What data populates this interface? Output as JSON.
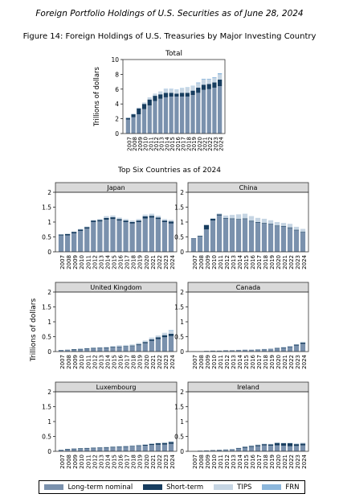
{
  "doc_title": "Foreign Portfolio Holdings of U.S. Securities as of June 28, 2024",
  "figure_title": "Figure 14: Foreign Holdings of U.S. Treasuries by Major Investing Country",
  "section_title": "Top Six Countries as of 2024",
  "shared_ylabel": "Trillions of dollars",
  "colors": {
    "lt": "#7a91ad",
    "st": "#173d5f",
    "tips": "#c6d5e3",
    "frn": "#8cb7dc",
    "panel_header": "#d9d9d9"
  },
  "legend": [
    {
      "key": "lt",
      "label": "Long-term nominal"
    },
    {
      "key": "st",
      "label": "Short-term"
    },
    {
      "key": "tips",
      "label": "TIPS"
    },
    {
      "key": "frn",
      "label": "FRN"
    }
  ],
  "chart_data": [
    {
      "type": "bar",
      "stacked": true,
      "title": "Total",
      "ylabel": "Trillions of dollars",
      "ylim": [
        0,
        10
      ],
      "yticks": [
        0,
        2,
        4,
        6,
        8,
        10
      ],
      "categories": [
        "2007",
        "2008",
        "2009",
        "2010",
        "2011",
        "2012",
        "2013",
        "2014",
        "2015",
        "2016",
        "2017",
        "2018",
        "2019",
        "2020",
        "2021",
        "2022",
        "2023",
        "2024"
      ],
      "series": [
        {
          "name": "Long-term nominal",
          "key": "lt",
          "values": [
            1.9,
            2.2,
            2.6,
            3.3,
            3.8,
            4.4,
            4.7,
            4.9,
            5.0,
            5.0,
            5.0,
            5.0,
            5.2,
            5.5,
            5.9,
            6.0,
            6.2,
            6.4
          ]
        },
        {
          "name": "Short-term",
          "key": "st",
          "values": [
            0.2,
            0.4,
            0.8,
            0.7,
            0.8,
            0.7,
            0.6,
            0.6,
            0.5,
            0.4,
            0.5,
            0.5,
            0.6,
            0.7,
            0.7,
            0.7,
            0.7,
            0.9
          ]
        },
        {
          "name": "TIPS",
          "key": "tips",
          "values": [
            0.1,
            0.1,
            0.1,
            0.2,
            0.3,
            0.3,
            0.4,
            0.5,
            0.5,
            0.5,
            0.6,
            0.7,
            0.6,
            0.6,
            0.7,
            0.6,
            0.6,
            0.7
          ]
        },
        {
          "name": "FRN",
          "key": "frn",
          "values": [
            0,
            0,
            0,
            0,
            0,
            0,
            0,
            0.05,
            0.05,
            0.05,
            0.05,
            0.05,
            0.05,
            0.1,
            0.1,
            0.1,
            0.1,
            0.15
          ]
        }
      ]
    },
    {
      "type": "bar",
      "stacked": true,
      "title": "Japan",
      "ylim": [
        0,
        2
      ],
      "yticks": [
        0,
        0.5,
        1,
        1.5,
        2
      ],
      "categories": [
        "2007",
        "2008",
        "2009",
        "2010",
        "2011",
        "2012",
        "2013",
        "2014",
        "2015",
        "2016",
        "2017",
        "2018",
        "2019",
        "2020",
        "2021",
        "2022",
        "2023",
        "2024"
      ],
      "series": [
        {
          "name": "Long-term nominal",
          "key": "lt",
          "values": [
            0.55,
            0.55,
            0.62,
            0.7,
            0.78,
            1.0,
            1.02,
            1.08,
            1.1,
            1.05,
            1.0,
            0.95,
            1.0,
            1.12,
            1.15,
            1.1,
            1.0,
            0.95
          ]
        },
        {
          "name": "Short-term",
          "key": "st",
          "values": [
            0.03,
            0.05,
            0.05,
            0.05,
            0.05,
            0.05,
            0.05,
            0.06,
            0.06,
            0.05,
            0.05,
            0.05,
            0.05,
            0.07,
            0.06,
            0.05,
            0.05,
            0.07
          ]
        },
        {
          "name": "TIPS",
          "key": "tips",
          "values": [
            0.01,
            0.01,
            0.01,
            0.02,
            0.02,
            0.02,
            0.03,
            0.06,
            0.06,
            0.05,
            0.05,
            0.05,
            0.05,
            0.06,
            0.07,
            0.06,
            0.05,
            0.05
          ]
        },
        {
          "name": "FRN",
          "key": "frn",
          "values": [
            0,
            0,
            0,
            0,
            0,
            0,
            0,
            0,
            0,
            0,
            0,
            0,
            0,
            0,
            0,
            0,
            0,
            0
          ]
        }
      ]
    },
    {
      "type": "bar",
      "stacked": true,
      "title": "China",
      "ylim": [
        0,
        2
      ],
      "yticks": [
        0,
        0.5,
        1,
        1.5,
        2
      ],
      "categories": [
        "2007",
        "2008",
        "2009",
        "2010",
        "2011",
        "2012",
        "2013",
        "2014",
        "2015",
        "2016",
        "2017",
        "2018",
        "2019",
        "2020",
        "2021",
        "2022",
        "2023",
        "2024"
      ],
      "series": [
        {
          "name": "Long-term nominal",
          "key": "lt",
          "values": [
            0.45,
            0.52,
            0.75,
            1.05,
            1.22,
            1.12,
            1.1,
            1.08,
            1.1,
            1.02,
            0.98,
            0.95,
            0.92,
            0.86,
            0.85,
            0.8,
            0.72,
            0.65
          ]
        },
        {
          "name": "Short-term",
          "key": "st",
          "values": [
            0.01,
            0.02,
            0.15,
            0.06,
            0.04,
            0.02,
            0.02,
            0.02,
            0.02,
            0.02,
            0.02,
            0.02,
            0.02,
            0.02,
            0.02,
            0.02,
            0.02,
            0.02
          ]
        },
        {
          "name": "TIPS",
          "key": "tips",
          "values": [
            0,
            0,
            0,
            0.02,
            0.03,
            0.08,
            0.12,
            0.16,
            0.16,
            0.16,
            0.14,
            0.14,
            0.12,
            0.12,
            0.1,
            0.12,
            0.1,
            0.1
          ]
        },
        {
          "name": "FRN",
          "key": "frn",
          "values": [
            0,
            0,
            0,
            0,
            0,
            0,
            0,
            0,
            0,
            0,
            0,
            0,
            0,
            0,
            0,
            0,
            0,
            0
          ]
        }
      ]
    },
    {
      "type": "bar",
      "stacked": true,
      "title": "United Kingdom",
      "ylim": [
        0,
        2
      ],
      "yticks": [
        0,
        0.5,
        1,
        1.5,
        2
      ],
      "categories": [
        "2007",
        "2008",
        "2009",
        "2010",
        "2011",
        "2012",
        "2013",
        "2014",
        "2015",
        "2016",
        "2017",
        "2018",
        "2019",
        "2020",
        "2021",
        "2022",
        "2023",
        "2024"
      ],
      "series": [
        {
          "name": "Long-term nominal",
          "key": "lt",
          "values": [
            0.04,
            0.05,
            0.06,
            0.07,
            0.09,
            0.1,
            0.11,
            0.12,
            0.14,
            0.15,
            0.16,
            0.18,
            0.22,
            0.28,
            0.36,
            0.42,
            0.48,
            0.52
          ]
        },
        {
          "name": "Short-term",
          "key": "st",
          "values": [
            0.01,
            0.01,
            0.02,
            0.02,
            0.02,
            0.02,
            0.02,
            0.02,
            0.02,
            0.02,
            0.02,
            0.02,
            0.03,
            0.04,
            0.05,
            0.06,
            0.07,
            0.08
          ]
        },
        {
          "name": "TIPS",
          "key": "tips",
          "values": [
            0,
            0,
            0,
            0.01,
            0.01,
            0.02,
            0.02,
            0.02,
            0.03,
            0.04,
            0.04,
            0.04,
            0.04,
            0.05,
            0.06,
            0.06,
            0.08,
            0.1
          ]
        },
        {
          "name": "FRN",
          "key": "frn",
          "values": [
            0,
            0,
            0,
            0,
            0,
            0,
            0,
            0,
            0,
            0,
            0,
            0,
            0,
            0,
            0,
            0,
            0,
            0.02
          ]
        }
      ]
    },
    {
      "type": "bar",
      "stacked": true,
      "title": "Canada",
      "ylim": [
        0,
        2
      ],
      "yticks": [
        0,
        0.5,
        1,
        1.5,
        2
      ],
      "categories": [
        "2007",
        "2008",
        "2009",
        "2010",
        "2011",
        "2012",
        "2013",
        "2014",
        "2015",
        "2016",
        "2017",
        "2018",
        "2019",
        "2020",
        "2021",
        "2022",
        "2023",
        "2024"
      ],
      "series": [
        {
          "name": "Long-term nominal",
          "key": "lt",
          "values": [
            0.01,
            0.01,
            0.01,
            0.02,
            0.02,
            0.03,
            0.03,
            0.04,
            0.05,
            0.05,
            0.06,
            0.07,
            0.08,
            0.1,
            0.12,
            0.15,
            0.2,
            0.26
          ]
        },
        {
          "name": "Short-term",
          "key": "st",
          "values": [
            0,
            0,
            0.01,
            0.01,
            0.01,
            0.01,
            0.01,
            0.01,
            0.01,
            0.01,
            0.01,
            0.01,
            0.01,
            0.02,
            0.02,
            0.02,
            0.03,
            0.04
          ]
        },
        {
          "name": "TIPS",
          "key": "tips",
          "values": [
            0,
            0,
            0,
            0,
            0,
            0,
            0,
            0.01,
            0.01,
            0.01,
            0.01,
            0.01,
            0.01,
            0.01,
            0.02,
            0.02,
            0.02,
            0.03
          ]
        },
        {
          "name": "FRN",
          "key": "frn",
          "values": [
            0,
            0,
            0,
            0,
            0,
            0,
            0,
            0,
            0,
            0,
            0,
            0,
            0,
            0,
            0,
            0,
            0,
            0
          ]
        }
      ]
    },
    {
      "type": "bar",
      "stacked": true,
      "title": "Luxembourg",
      "ylim": [
        0,
        2
      ],
      "yticks": [
        0,
        0.5,
        1,
        1.5,
        2
      ],
      "categories": [
        "2007",
        "2008",
        "2009",
        "2010",
        "2011",
        "2012",
        "2013",
        "2014",
        "2015",
        "2016",
        "2017",
        "2018",
        "2019",
        "2020",
        "2021",
        "2022",
        "2023",
        "2024"
      ],
      "series": [
        {
          "name": "Long-term nominal",
          "key": "lt",
          "values": [
            0.04,
            0.06,
            0.07,
            0.08,
            0.09,
            0.1,
            0.11,
            0.12,
            0.13,
            0.14,
            0.15,
            0.16,
            0.18,
            0.19,
            0.21,
            0.22,
            0.23,
            0.25
          ]
        },
        {
          "name": "Short-term",
          "key": "st",
          "values": [
            0.01,
            0.02,
            0.02,
            0.02,
            0.02,
            0.02,
            0.02,
            0.02,
            0.02,
            0.02,
            0.02,
            0.02,
            0.02,
            0.03,
            0.04,
            0.05,
            0.05,
            0.06
          ]
        },
        {
          "name": "TIPS",
          "key": "tips",
          "values": [
            0,
            0,
            0,
            0,
            0.01,
            0.01,
            0.01,
            0.01,
            0.01,
            0.02,
            0.02,
            0.02,
            0.02,
            0.02,
            0.02,
            0.02,
            0.02,
            0.03
          ]
        },
        {
          "name": "FRN",
          "key": "frn",
          "values": [
            0,
            0,
            0,
            0,
            0,
            0,
            0,
            0,
            0,
            0,
            0,
            0,
            0,
            0,
            0,
            0,
            0,
            0
          ]
        }
      ]
    },
    {
      "type": "bar",
      "stacked": true,
      "title": "Ireland",
      "ylim": [
        0,
        2
      ],
      "yticks": [
        0,
        0.5,
        1,
        1.5,
        2
      ],
      "categories": [
        "2007",
        "2008",
        "2009",
        "2010",
        "2011",
        "2012",
        "2013",
        "2014",
        "2015",
        "2016",
        "2017",
        "2018",
        "2019",
        "2020",
        "2021",
        "2022",
        "2023",
        "2024"
      ],
      "series": [
        {
          "name": "Long-term nominal",
          "key": "lt",
          "values": [
            0.01,
            0.01,
            0.02,
            0.03,
            0.04,
            0.05,
            0.06,
            0.09,
            0.12,
            0.15,
            0.17,
            0.2,
            0.19,
            0.2,
            0.19,
            0.17,
            0.18,
            0.2
          ]
        },
        {
          "name": "Short-term",
          "key": "st",
          "values": [
            0,
            0.01,
            0.01,
            0.01,
            0.01,
            0.01,
            0.01,
            0.02,
            0.03,
            0.03,
            0.04,
            0.04,
            0.04,
            0.08,
            0.08,
            0.1,
            0.06,
            0.06
          ]
        },
        {
          "name": "TIPS",
          "key": "tips",
          "values": [
            0,
            0,
            0,
            0,
            0,
            0,
            0.01,
            0.01,
            0.01,
            0.02,
            0.02,
            0.02,
            0.02,
            0.02,
            0.02,
            0.02,
            0.03,
            0.03
          ]
        },
        {
          "name": "FRN",
          "key": "frn",
          "values": [
            0,
            0,
            0,
            0,
            0,
            0,
            0,
            0,
            0,
            0,
            0,
            0,
            0,
            0,
            0,
            0,
            0,
            0
          ]
        }
      ]
    }
  ]
}
